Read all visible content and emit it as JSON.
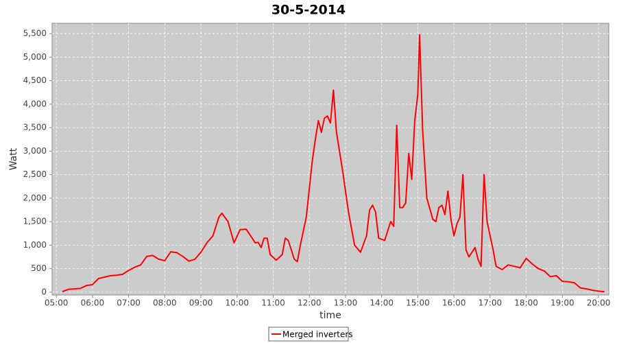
{
  "chart_data": {
    "type": "line",
    "title": "30-5-2014",
    "x_label": "time",
    "y_label": "Watt",
    "x": [
      "05:10",
      "05:20",
      "05:30",
      "05:40",
      "05:50",
      "06:00",
      "06:10",
      "06:20",
      "06:30",
      "06:40",
      "06:50",
      "07:00",
      "07:10",
      "07:20",
      "07:30",
      "07:40",
      "07:50",
      "08:00",
      "08:10",
      "08:20",
      "08:30",
      "08:40",
      "08:50",
      "09:00",
      "09:10",
      "09:20",
      "09:30",
      "09:35",
      "09:45",
      "09:55",
      "10:05",
      "10:15",
      "10:25",
      "10:30",
      "10:35",
      "10:40",
      "10:45",
      "10:50",
      "10:55",
      "11:05",
      "11:15",
      "11:20",
      "11:25",
      "11:35",
      "11:40",
      "11:45",
      "11:55",
      "12:05",
      "12:10",
      "12:15",
      "12:20",
      "12:25",
      "12:30",
      "12:35",
      "12:40",
      "12:45",
      "12:55",
      "13:05",
      "13:15",
      "13:25",
      "13:35",
      "13:40",
      "13:45",
      "13:50",
      "13:55",
      "14:05",
      "14:15",
      "14:20",
      "14:25",
      "14:30",
      "14:35",
      "14:40",
      "14:45",
      "14:50",
      "14:55",
      "15:00",
      "15:03",
      "15:08",
      "15:15",
      "15:25",
      "15:30",
      "15:35",
      "15:40",
      "15:45",
      "15:50",
      "15:55",
      "16:00",
      "16:05",
      "16:10",
      "16:15",
      "16:20",
      "16:25",
      "16:35",
      "16:40",
      "16:45",
      "16:50",
      "16:55",
      "17:05",
      "17:10",
      "17:20",
      "17:30",
      "17:40",
      "17:50",
      "18:00",
      "18:10",
      "18:20",
      "18:30",
      "18:40",
      "18:50",
      "19:00",
      "19:10",
      "19:20",
      "19:30",
      "19:40",
      "19:50",
      "20:00",
      "20:10"
    ],
    "series": [
      {
        "name": "Merged inverters",
        "color": "#ff0000",
        "values": [
          10,
          60,
          70,
          80,
          140,
          160,
          290,
          320,
          350,
          360,
          380,
          460,
          530,
          580,
          760,
          780,
          700,
          670,
          860,
          840,
          760,
          660,
          700,
          850,
          1050,
          1200,
          1600,
          1680,
          1500,
          1050,
          1330,
          1340,
          1150,
          1050,
          1060,
          950,
          1150,
          1150,
          800,
          680,
          800,
          1150,
          1100,
          700,
          650,
          1000,
          1600,
          2800,
          3250,
          3650,
          3400,
          3700,
          3750,
          3600,
          4300,
          3400,
          2600,
          1700,
          1000,
          850,
          1200,
          1750,
          1850,
          1700,
          1150,
          1100,
          1500,
          1400,
          3550,
          1800,
          1800,
          1900,
          2950,
          2400,
          3650,
          4200,
          5480,
          3450,
          2000,
          1550,
          1500,
          1800,
          1850,
          1650,
          2150,
          1550,
          1200,
          1450,
          1600,
          2500,
          900,
          750,
          950,
          700,
          550,
          2500,
          1500,
          900,
          550,
          480,
          580,
          550,
          520,
          720,
          600,
          500,
          450,
          330,
          350,
          230,
          220,
          200,
          90,
          70,
          40,
          20,
          10
        ]
      }
    ],
    "xlim": [
      "04:53",
      "20:17"
    ],
    "xticks": [
      "05:00",
      "06:00",
      "07:00",
      "08:00",
      "09:00",
      "10:00",
      "11:00",
      "12:00",
      "13:00",
      "14:00",
      "15:00",
      "16:00",
      "17:00",
      "18:00",
      "19:00",
      "20:00"
    ],
    "ylim": [
      -60,
      5720
    ],
    "yticks": [
      0,
      {
        "value": 500,
        "label": "500"
      },
      {
        "value": 1000,
        "label": "1,000"
      },
      {
        "value": 1500,
        "label": "1,500"
      },
      {
        "value": 2000,
        "label": "2,000"
      },
      {
        "value": 2500,
        "label": "2,500"
      },
      {
        "value": 3000,
        "label": "3,000"
      },
      {
        "value": 3500,
        "label": "3,500"
      },
      {
        "value": 4000,
        "label": "4,000"
      },
      {
        "value": 4500,
        "label": "4,500"
      },
      {
        "value": 5000,
        "label": "5,000"
      },
      {
        "value": 5500,
        "label": "5,500"
      }
    ],
    "grid": true
  }
}
